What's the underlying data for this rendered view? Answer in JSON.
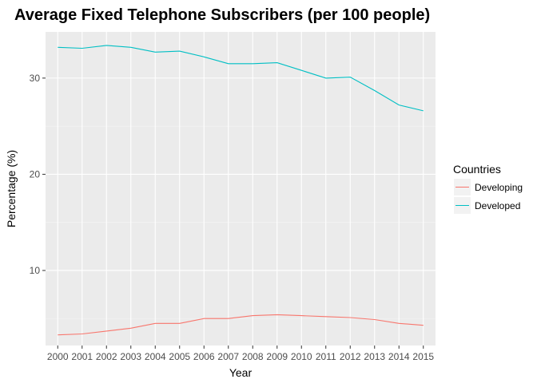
{
  "chart_data": {
    "type": "line",
    "title": "Average Fixed Telephone Subscribers (per 100 people)",
    "xlabel": "Year",
    "ylabel": "Percentage (%)",
    "x": [
      2000,
      2001,
      2002,
      2003,
      2004,
      2005,
      2006,
      2007,
      2008,
      2009,
      2010,
      2011,
      2012,
      2013,
      2014,
      2015
    ],
    "xlim": [
      1999.5,
      2015.5
    ],
    "ylim": [
      2.2,
      34.8
    ],
    "yticks": [
      10,
      20,
      30
    ],
    "grid": true,
    "legend": {
      "title": "Countries",
      "position": "right"
    },
    "series": [
      {
        "name": "Developing",
        "color": "#F8766D",
        "values": [
          3.3,
          3.4,
          3.7,
          4.0,
          4.5,
          4.5,
          5.0,
          5.0,
          5.3,
          5.4,
          5.3,
          5.2,
          5.1,
          4.9,
          4.5,
          4.3
        ]
      },
      {
        "name": "Developed",
        "color": "#00BFC4",
        "values": [
          33.2,
          33.1,
          33.4,
          33.2,
          32.7,
          32.8,
          32.2,
          31.5,
          31.5,
          31.6,
          30.8,
          30.0,
          30.1,
          28.7,
          27.2,
          26.6
        ]
      }
    ]
  }
}
